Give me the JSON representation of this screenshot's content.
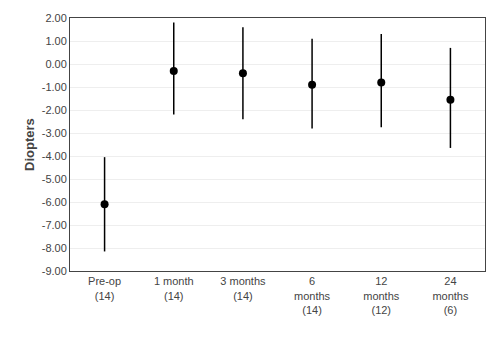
{
  "chart_data": {
    "type": "scatter",
    "categories": [
      "Pre-op\n(14)",
      "1 month\n(14)",
      "3 months\n(14)",
      "6\nmonths\n(14)",
      "12\nmonths\n(12)",
      "24\nmonths\n(6)"
    ],
    "values": [
      -6.1,
      -0.3,
      -0.4,
      -0.9,
      -0.8,
      -1.55
    ],
    "error_lower": [
      2.05,
      1.9,
      2.0,
      1.9,
      1.95,
      2.1
    ],
    "error_upper": [
      2.05,
      2.1,
      2.0,
      2.0,
      2.1,
      2.25
    ],
    "ylabel": "Diopters",
    "ylim": [
      -9.0,
      2.0
    ],
    "yticks": [
      {
        "value": 2.0,
        "label": "2.00"
      },
      {
        "value": 1.0,
        "label": "1.00"
      },
      {
        "value": 0.0,
        "label": "0.00"
      },
      {
        "value": -1.0,
        "label": "-1.00"
      },
      {
        "value": -2.0,
        "label": "-2.00"
      },
      {
        "value": -3.0,
        "label": "-3.00"
      },
      {
        "value": -4.0,
        "label": "-4.00"
      },
      {
        "value": -5.0,
        "label": "-5.00"
      },
      {
        "value": -6.0,
        "label": "-6.00"
      },
      {
        "value": -7.0,
        "label": "-7.00"
      },
      {
        "value": -8.0,
        "label": "-8.00"
      },
      {
        "value": -9.0,
        "label": "-9.00"
      }
    ],
    "color": "#000000",
    "marker": "circle",
    "grid": true
  }
}
